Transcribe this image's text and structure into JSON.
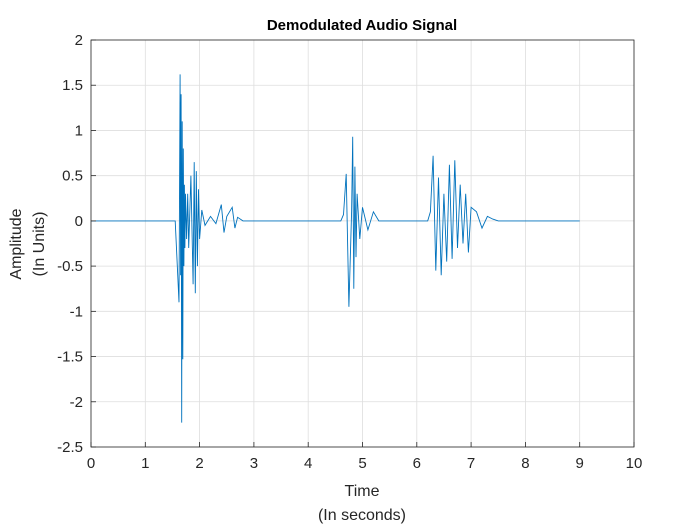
{
  "chart_data": {
    "type": "line",
    "title": "Demodulated Audio Signal",
    "xlabel": [
      "Time",
      "(In seconds)"
    ],
    "ylabel": [
      "Amplitude",
      "(In Units)"
    ],
    "xlim": [
      0,
      10
    ],
    "ylim": [
      -2.5,
      2
    ],
    "xticks": [
      0,
      1,
      2,
      3,
      4,
      5,
      6,
      7,
      8,
      9,
      10
    ],
    "yticks": [
      2,
      1.5,
      1,
      0.5,
      0,
      -0.5,
      -1,
      -1.5,
      -2,
      -2.5
    ],
    "grid": true,
    "line_color": "#0072bd",
    "series": [
      {
        "x": [
          0,
          1.0,
          1.55,
          1.62,
          1.64,
          1.65,
          1.66,
          1.67,
          1.68,
          1.69,
          1.7,
          1.71,
          1.72,
          1.73,
          1.74,
          1.76,
          1.78,
          1.8,
          1.84,
          1.88,
          1.9,
          1.92,
          1.94,
          1.96,
          1.98,
          2.0,
          2.04,
          2.1,
          2.2,
          2.3,
          2.4,
          2.45,
          2.5,
          2.6,
          2.65,
          2.7,
          2.8,
          3.0,
          4.6,
          4.65,
          4.7,
          4.75,
          4.8,
          4.82,
          4.84,
          4.86,
          4.88,
          4.9,
          4.95,
          5.0,
          5.1,
          5.2,
          5.3,
          5.4,
          6.2,
          6.25,
          6.3,
          6.35,
          6.4,
          6.45,
          6.5,
          6.55,
          6.6,
          6.65,
          6.7,
          6.75,
          6.8,
          6.85,
          6.9,
          6.95,
          7.0,
          7.1,
          7.2,
          7.3,
          7.4,
          7.5,
          8.0,
          9.0
        ],
        "y": [
          0,
          0,
          0,
          -0.9,
          1.62,
          -0.6,
          1.4,
          -2.23,
          1.1,
          -1.53,
          0.8,
          -0.5,
          0.4,
          -0.3,
          0.3,
          -0.2,
          0.3,
          -0.3,
          0.5,
          -0.7,
          0.65,
          -0.8,
          0.55,
          -0.5,
          0.35,
          -0.2,
          0.12,
          -0.05,
          0.05,
          -0.03,
          0.18,
          -0.13,
          0.05,
          0.15,
          -0.08,
          0.04,
          0,
          0,
          0,
          0.07,
          0.52,
          -0.95,
          0.1,
          0.93,
          -0.75,
          0.6,
          -0.4,
          0.3,
          -0.2,
          0.15,
          -0.1,
          0.1,
          0,
          0,
          0,
          0.1,
          0.72,
          -0.55,
          0.48,
          -0.6,
          0.3,
          -0.45,
          0.62,
          -0.42,
          0.67,
          -0.3,
          0.4,
          -0.25,
          0.3,
          -0.35,
          0.15,
          0.1,
          -0.08,
          0.05,
          0.02,
          0,
          0,
          0
        ]
      }
    ]
  }
}
